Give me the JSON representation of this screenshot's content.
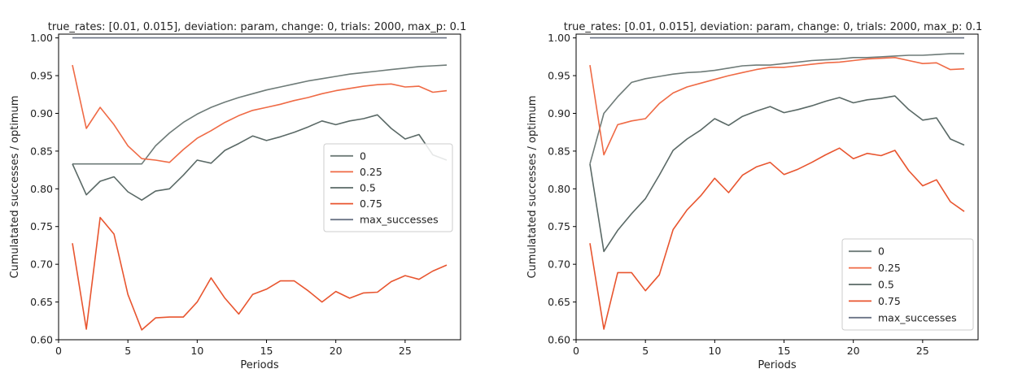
{
  "chart_data": [
    {
      "type": "line",
      "title": "true_rates: [0.01, 0.015], deviation: param, change: 0, trials: 2000, max_p: 0.1",
      "xlabel": "Periods",
      "ylabel": "Cumulatated successes / optimum",
      "xlim": [
        0,
        29
      ],
      "ylim": [
        0.6,
        1.005
      ],
      "xticks": [
        0,
        5,
        10,
        15,
        20,
        25
      ],
      "yticks": [
        0.6,
        0.65,
        0.7,
        0.75,
        0.8,
        0.85,
        0.9,
        0.95,
        1.0
      ],
      "grid": false,
      "legend_position": "center-right",
      "x": [
        1,
        2,
        3,
        4,
        5,
        6,
        7,
        8,
        9,
        10,
        11,
        12,
        13,
        14,
        15,
        16,
        17,
        18,
        19,
        20,
        21,
        22,
        23,
        24,
        25,
        26,
        27,
        28
      ],
      "series": [
        {
          "name": "0",
          "color": "#6e7b78",
          "values": [
            0.833,
            0.833,
            0.833,
            0.833,
            0.833,
            0.833,
            0.857,
            0.874,
            0.888,
            0.899,
            0.908,
            0.915,
            0.921,
            0.926,
            0.931,
            0.935,
            0.939,
            0.943,
            0.946,
            0.949,
            0.952,
            0.954,
            0.956,
            0.958,
            0.96,
            0.962,
            0.963,
            0.964
          ]
        },
        {
          "name": "0.25",
          "color": "#ef6a45",
          "values": [
            0.964,
            0.88,
            0.908,
            0.885,
            0.857,
            0.84,
            0.838,
            0.835,
            0.852,
            0.867,
            0.877,
            0.888,
            0.897,
            0.904,
            0.908,
            0.912,
            0.917,
            0.921,
            0.926,
            0.93,
            0.933,
            0.936,
            0.938,
            0.939,
            0.935,
            0.936,
            0.928,
            0.93
          ]
        },
        {
          "name": "0.5",
          "color": "#5a6966",
          "values": [
            0.833,
            0.792,
            0.81,
            0.816,
            0.796,
            0.785,
            0.797,
            0.8,
            0.818,
            0.838,
            0.834,
            0.851,
            0.86,
            0.87,
            0.864,
            0.869,
            0.875,
            0.882,
            0.89,
            0.885,
            0.89,
            0.893,
            0.898,
            0.88,
            0.866,
            0.872,
            0.845,
            0.838
          ]
        },
        {
          "name": "0.75",
          "color": "#e8552f",
          "values": [
            0.728,
            0.614,
            0.762,
            0.74,
            0.66,
            0.613,
            0.629,
            0.63,
            0.63,
            0.65,
            0.682,
            0.655,
            0.634,
            0.66,
            0.667,
            0.678,
            0.678,
            0.665,
            0.65,
            0.664,
            0.655,
            0.662,
            0.663,
            0.677,
            0.685,
            0.68,
            0.691,
            0.699
          ]
        },
        {
          "name": "max_successes",
          "color": "#6a7385",
          "values": [
            1.0,
            1.0,
            1.0,
            1.0,
            1.0,
            1.0,
            1.0,
            1.0,
            1.0,
            1.0,
            1.0,
            1.0,
            1.0,
            1.0,
            1.0,
            1.0,
            1.0,
            1.0,
            1.0,
            1.0,
            1.0,
            1.0,
            1.0,
            1.0,
            1.0,
            1.0,
            1.0,
            1.0
          ]
        }
      ]
    },
    {
      "type": "line",
      "title": "true_rates: [0.01, 0.015], deviation: param, change: 0, trials: 2000, max_p: 0.1",
      "xlabel": "Periods",
      "ylabel": "Cumulatated successes / optimum",
      "xlim": [
        0,
        29
      ],
      "ylim": [
        0.6,
        1.005
      ],
      "xticks": [
        0,
        5,
        10,
        15,
        20,
        25
      ],
      "yticks": [
        0.6,
        0.65,
        0.7,
        0.75,
        0.8,
        0.85,
        0.9,
        0.95,
        1.0
      ],
      "grid": false,
      "legend_position": "lower-right",
      "x": [
        1,
        2,
        3,
        4,
        5,
        6,
        7,
        8,
        9,
        10,
        11,
        12,
        13,
        14,
        15,
        16,
        17,
        18,
        19,
        20,
        21,
        22,
        23,
        24,
        25,
        26,
        27,
        28
      ],
      "series": [
        {
          "name": "0",
          "color": "#6e7b78",
          "values": [
            0.833,
            0.9,
            0.922,
            0.941,
            0.946,
            0.949,
            0.952,
            0.954,
            0.955,
            0.957,
            0.96,
            0.963,
            0.964,
            0.964,
            0.966,
            0.968,
            0.97,
            0.971,
            0.972,
            0.974,
            0.974,
            0.975,
            0.976,
            0.977,
            0.977,
            0.978,
            0.979,
            0.979
          ]
        },
        {
          "name": "0.25",
          "color": "#ef6a45",
          "values": [
            0.964,
            0.845,
            0.885,
            0.89,
            0.893,
            0.913,
            0.927,
            0.935,
            0.94,
            0.945,
            0.95,
            0.954,
            0.958,
            0.961,
            0.961,
            0.963,
            0.965,
            0.967,
            0.968,
            0.97,
            0.972,
            0.973,
            0.974,
            0.97,
            0.966,
            0.967,
            0.958,
            0.959
          ]
        },
        {
          "name": "0.5",
          "color": "#5a6966",
          "values": [
            0.833,
            0.717,
            0.745,
            0.767,
            0.787,
            0.818,
            0.851,
            0.866,
            0.878,
            0.893,
            0.884,
            0.896,
            0.903,
            0.909,
            0.901,
            0.905,
            0.91,
            0.916,
            0.921,
            0.914,
            0.918,
            0.92,
            0.923,
            0.905,
            0.891,
            0.894,
            0.866,
            0.858
          ]
        },
        {
          "name": "0.75",
          "color": "#e8552f",
          "values": [
            0.728,
            0.614,
            0.689,
            0.689,
            0.665,
            0.686,
            0.746,
            0.772,
            0.791,
            0.814,
            0.795,
            0.818,
            0.829,
            0.835,
            0.819,
            0.826,
            0.835,
            0.845,
            0.854,
            0.84,
            0.847,
            0.844,
            0.851,
            0.824,
            0.804,
            0.812,
            0.783,
            0.77
          ]
        },
        {
          "name": "max_successes",
          "color": "#6a7385",
          "values": [
            1.0,
            1.0,
            1.0,
            1.0,
            1.0,
            1.0,
            1.0,
            1.0,
            1.0,
            1.0,
            1.0,
            1.0,
            1.0,
            1.0,
            1.0,
            1.0,
            1.0,
            1.0,
            1.0,
            1.0,
            1.0,
            1.0,
            1.0,
            1.0,
            1.0,
            1.0,
            1.0,
            1.0
          ]
        }
      ]
    }
  ]
}
